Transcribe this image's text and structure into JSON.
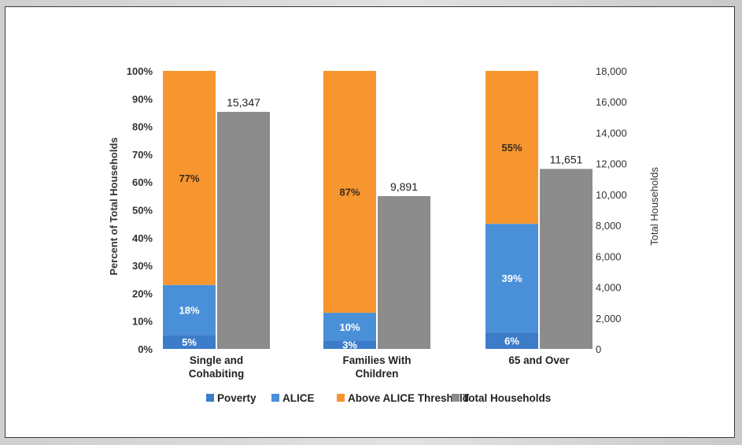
{
  "chart_data": {
    "type": "bar",
    "categories": [
      [
        "Single and",
        "Cohabiting"
      ],
      [
        "Families With",
        "Children"
      ],
      [
        "65 and Over"
      ]
    ],
    "series": [
      {
        "name": "Poverty",
        "color": "#3d7cc9",
        "values": [
          5,
          3,
          6
        ],
        "labels": [
          "5%",
          "3%",
          "6%"
        ]
      },
      {
        "name": "ALICE",
        "color": "#4a90d9",
        "values": [
          18,
          10,
          39
        ],
        "labels": [
          "18%",
          "10%",
          "39%"
        ]
      },
      {
        "name": "Above ALICE Threshold",
        "color": "#f7962f",
        "values": [
          77,
          87,
          55
        ],
        "labels": [
          "77%",
          "87%",
          "55%"
        ]
      },
      {
        "name": "Total Households",
        "color": "#8c8c8c",
        "values": [
          15347,
          9891,
          11651
        ],
        "labels": [
          "15,347",
          "9,891",
          "11,651"
        ]
      }
    ],
    "ylabel": "Percent of Total Households",
    "ylabel_right": "Total Households",
    "ylim": [
      0,
      100
    ],
    "ylim_right": [
      0,
      18000
    ],
    "yticks": [
      "0%",
      "10%",
      "20%",
      "30%",
      "40%",
      "50%",
      "60%",
      "70%",
      "80%",
      "90%",
      "100%"
    ],
    "yticks_right": [
      "0",
      "2,000",
      "4,000",
      "6,000",
      "8,000",
      "10,000",
      "12,000",
      "14,000",
      "16,000",
      "18,000"
    ],
    "legend_position": "bottom",
    "grid": false
  }
}
